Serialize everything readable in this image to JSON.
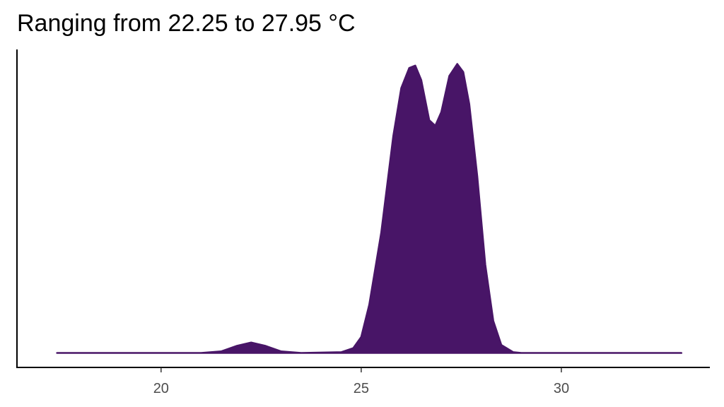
{
  "chart_data": {
    "type": "area",
    "title": "Ranging from 22.25 to 27.95 °C",
    "color": "#481567",
    "x": [
      17.4,
      21.0,
      21.5,
      21.9,
      22.25,
      22.6,
      23.0,
      23.5,
      24.5,
      24.8,
      25.0,
      25.2,
      25.5,
      25.8,
      26.0,
      26.2,
      26.35,
      26.5,
      26.7,
      26.85,
      27.0,
      27.2,
      27.4,
      27.55,
      27.7,
      27.9,
      28.1,
      28.3,
      28.5,
      28.8,
      29.0,
      33.0
    ],
    "values": [
      0,
      0,
      0.002,
      0.009,
      0.013,
      0.009,
      0.002,
      0,
      0.001,
      0.006,
      0.02,
      0.06,
      0.15,
      0.27,
      0.33,
      0.355,
      0.358,
      0.34,
      0.29,
      0.283,
      0.3,
      0.345,
      0.36,
      0.35,
      0.31,
      0.22,
      0.11,
      0.04,
      0.01,
      0.001,
      0,
      0
    ],
    "xlim": [
      16.4,
      33.71
    ],
    "ylim": [
      -0.018,
      0.378
    ],
    "xticks": [
      20,
      25,
      30
    ]
  }
}
